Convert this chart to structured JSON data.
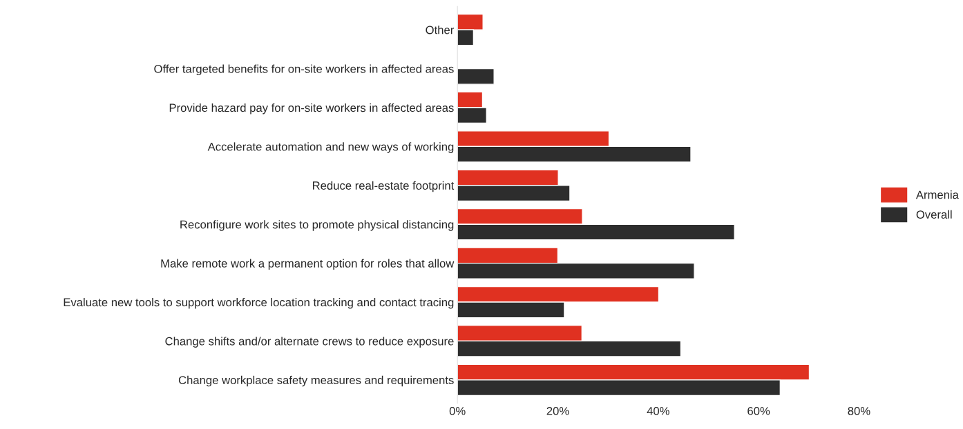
{
  "chart_data": {
    "type": "bar",
    "orientation": "horizontal",
    "categories": [
      "Other",
      "Offer targeted benefits for on-site workers in affected areas",
      "Provide hazard pay for on-site workers in affected areas",
      "Accelerate automation and new ways of working",
      "Reduce real-estate footprint",
      "Reconfigure work sites to promote physical distancing",
      "Make remote work a permanent option for roles that allow",
      "Evaluate new tools to support workforce location tracking and contact tracing",
      "Change shifts and/or alternate crews to reduce exposure",
      "Change workplace safety measures and requirements"
    ],
    "series": [
      {
        "name": "Armenia",
        "color": "#e03121",
        "values": [
          5.1,
          null,
          5.0,
          30.2,
          20.1,
          24.9,
          20.0,
          40.1,
          24.8,
          70.1
        ]
      },
      {
        "name": "Overall",
        "color": "#2d2d2d",
        "values": [
          3.2,
          7.3,
          5.8,
          46.5,
          22.4,
          55.2,
          47.2,
          21.3,
          44.5,
          64.3
        ]
      }
    ],
    "xlim": [
      0,
      80
    ],
    "xticks": [
      {
        "value": 0,
        "label": "0%"
      },
      {
        "value": 20,
        "label": "20%"
      },
      {
        "value": 40,
        "label": "40%"
      },
      {
        "value": 60,
        "label": "60%"
      },
      {
        "value": 80,
        "label": "80%"
      }
    ],
    "grid": false,
    "legend": "right"
  }
}
